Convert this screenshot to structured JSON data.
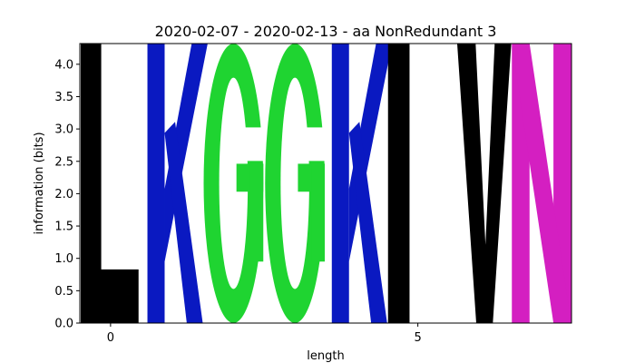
{
  "chart_data": {
    "type": "sequence-logo",
    "title": "2020-02-07 - 2020-02-13 - aa NonRedundant 3",
    "xlabel": "length",
    "ylabel": "information (bits)",
    "xlim": [
      -0.5,
      7.5
    ],
    "ylim": [
      0,
      4.32
    ],
    "x_ticks": [
      0,
      5
    ],
    "y_ticks": [
      0.0,
      0.5,
      1.0,
      1.5,
      2.0,
      2.5,
      3.0,
      3.5,
      4.0
    ],
    "y_tick_labels": [
      "0.0",
      "0.5",
      "1.0",
      "1.5",
      "2.0",
      "2.5",
      "3.0",
      "3.5",
      "4.0"
    ],
    "grid": false,
    "positions": [
      {
        "x": 0,
        "letter": "L",
        "height": 4.32,
        "color": "#000000"
      },
      {
        "x": 1,
        "letter": "K",
        "height": 4.32,
        "color": "#0a19c1"
      },
      {
        "x": 2,
        "letter": "G",
        "height": 4.32,
        "color": "#1fd431"
      },
      {
        "x": 3,
        "letter": "G",
        "height": 4.32,
        "color": "#1fd431"
      },
      {
        "x": 4,
        "letter": "K",
        "height": 4.32,
        "color": "#0a19c1"
      },
      {
        "x": 5,
        "letter": "I",
        "height": 4.32,
        "color": "#000000"
      },
      {
        "x": 6,
        "letter": "V",
        "height": 4.32,
        "color": "#000000"
      },
      {
        "x": 7,
        "letter": "N",
        "height": 4.32,
        "color": "#d41fc1"
      }
    ]
  }
}
